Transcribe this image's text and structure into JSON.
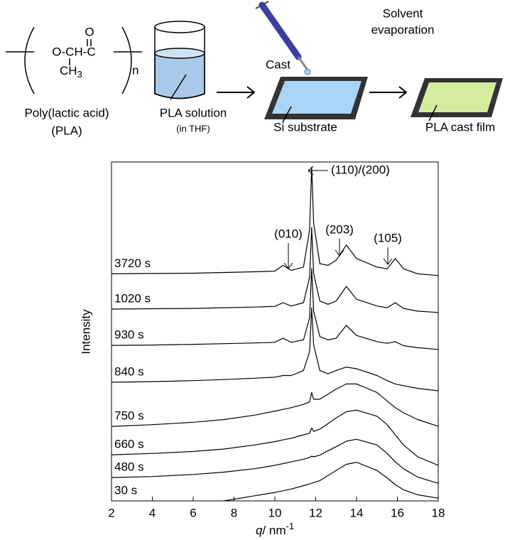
{
  "diagram": {
    "polymer_carbonyl_o": "O",
    "polymer_backbone": "O-CH-C",
    "polymer_methyl": "CH",
    "polymer_methyl_sub": "3",
    "polymer_repeat": "n",
    "polymer_name": "Poly(lactic acid)",
    "polymer_abbr": "(PLA)",
    "solution_label": "PLA solution",
    "solution_solvent": "(in THF)",
    "cast_label": "Cast",
    "substrate_label": "Si substrate",
    "evaporation_line1": "Solvent",
    "evaporation_line2": "evaporation",
    "film_label": "PLA cast film"
  },
  "chart_data": {
    "type": "line",
    "y_label": "Intensity",
    "x_label": {
      "symbol": "q",
      "unit": "/ nm",
      "exponent": "-1"
    },
    "xlim": [
      2,
      18
    ],
    "xticks": [
      2,
      4,
      6,
      8,
      10,
      12,
      14,
      16,
      18
    ],
    "ylim": [
      0,
      100
    ],
    "annotations": [
      "(110)/(200)",
      "(010)",
      "(203)",
      "(105)"
    ],
    "x": [
      2,
      4,
      6,
      7.5,
      9,
      10,
      10.4,
      10.8,
      11.4,
      11.7,
      11.8,
      11.9,
      12.2,
      12.6,
      13.0,
      13.5,
      14.0,
      15.0,
      15.5,
      15.9,
      16.3,
      17,
      18
    ],
    "series": [
      {
        "name": "30 s",
        "color": "#000000",
        "values": [
          null,
          null,
          null,
          0,
          1.5,
          2.5,
          3,
          3.5,
          4.5,
          5,
          5.2,
          5.4,
          6,
          7.5,
          9,
          10.8,
          11.4,
          9,
          6.8,
          4.8,
          3.3,
          1.8,
          0.8
        ]
      },
      {
        "name": "480 s",
        "color": "#000000",
        "values": [
          6.9,
          7.2,
          7.8,
          8.5,
          9.5,
          10.5,
          11,
          11.5,
          12.3,
          12.8,
          13.2,
          13,
          13.5,
          14.8,
          16,
          17.6,
          18.2,
          16.5,
          14,
          11.5,
          9.5,
          7,
          5.2
        ]
      },
      {
        "name": "660 s",
        "color": "#000000",
        "values": [
          13.6,
          14,
          14.6,
          15.3,
          16.5,
          17.5,
          18,
          18.5,
          19.5,
          20,
          21.5,
          20.5,
          21.2,
          22.8,
          24.5,
          26.3,
          26.8,
          25,
          22.5,
          19.5,
          16.5,
          13,
          10.5
        ]
      },
      {
        "name": "750 s",
        "color": "#000000",
        "values": [
          22,
          22.5,
          23.2,
          24,
          25.3,
          26.5,
          27,
          27.5,
          28.5,
          29.2,
          32,
          30,
          30,
          31.5,
          33,
          34.5,
          34.5,
          32,
          29.5,
          27.5,
          26,
          24,
          22
        ]
      },
      {
        "name": "840 s",
        "color": "#000000",
        "values": [
          35,
          35.2,
          35.5,
          35.8,
          36.2,
          36.5,
          37,
          37,
          38.5,
          44,
          57,
          46,
          38.5,
          37.5,
          38.5,
          39.5,
          39,
          37,
          35.5,
          34.5,
          34,
          33.2,
          32.5
        ]
      },
      {
        "name": "930 s",
        "color": "#000000",
        "values": [
          45.9,
          46,
          46.2,
          46.4,
          46.6,
          46.8,
          48,
          46.8,
          47.5,
          54,
          68.6,
          56,
          48.5,
          47.5,
          48,
          51.8,
          48.8,
          47,
          46.5,
          47,
          45.8,
          45.2,
          44.7
        ]
      },
      {
        "name": "1020 s",
        "color": "#000000",
        "values": [
          56.6,
          56.7,
          56.8,
          57,
          57.2,
          57.4,
          58.5,
          57.5,
          58.5,
          66,
          80.7,
          67,
          59,
          58,
          59,
          63.3,
          59.5,
          57.5,
          57,
          58.5,
          56.8,
          56,
          55.6
        ]
      },
      {
        "name": "3720 s",
        "color": "#000000",
        "values": [
          67,
          67.1,
          67.2,
          67.4,
          67.6,
          67.8,
          69.5,
          68,
          69,
          80,
          98.5,
          82,
          70,
          69.5,
          71,
          75.5,
          71.5,
          69,
          68.5,
          71.5,
          68.5,
          67,
          66.5
        ]
      }
    ]
  }
}
